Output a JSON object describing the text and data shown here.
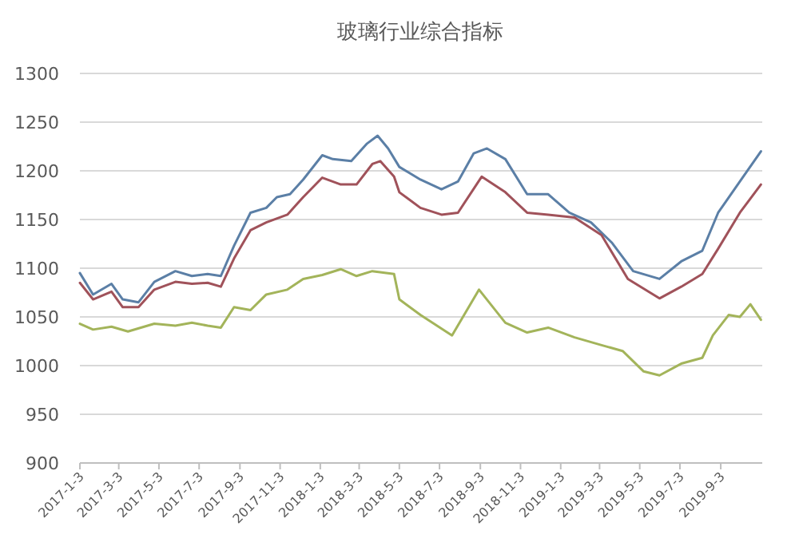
{
  "chart_data": {
    "type": "line",
    "title": "玻璃行业综合指标",
    "xlim": [
      "2017-01-03",
      "2019-11-05"
    ],
    "ylim": [
      900,
      1300
    ],
    "yticks": [
      900,
      950,
      1000,
      1050,
      1100,
      1150,
      1200,
      1250,
      1300
    ],
    "xticks": [
      {
        "value": "2017-01-03",
        "label": "2017-1-3"
      },
      {
        "value": "2017-03-03",
        "label": "2017-3-3"
      },
      {
        "value": "2017-05-03",
        "label": "2017-5-3"
      },
      {
        "value": "2017-07-03",
        "label": "2017-7-3"
      },
      {
        "value": "2017-09-03",
        "label": "2017-9-3"
      },
      {
        "value": "2017-11-03",
        "label": "2017-11-3"
      },
      {
        "value": "2018-01-03",
        "label": "2018-1-3"
      },
      {
        "value": "2018-03-03",
        "label": "2018-3-3"
      },
      {
        "value": "2018-05-03",
        "label": "2018-5-3"
      },
      {
        "value": "2018-07-03",
        "label": "2018-7-3"
      },
      {
        "value": "2018-09-03",
        "label": "2018-9-3"
      },
      {
        "value": "2018-11-03",
        "label": "2018-11-3"
      },
      {
        "value": "2019-01-03",
        "label": "2019-1-3"
      },
      {
        "value": "2019-03-03",
        "label": "2019-3-3"
      },
      {
        "value": "2019-05-03",
        "label": "2019-5-3"
      },
      {
        "value": "2019-07-03",
        "label": "2019-7-3"
      },
      {
        "value": "2019-09-03",
        "label": "2019-9-3"
      }
    ],
    "grid": "y",
    "marker": "none",
    "series": [
      {
        "color": "#5b7fa6",
        "x": [
          "2017-01-03",
          "2017-01-23",
          "2017-02-20",
          "2017-03-09",
          "2017-04-02",
          "2017-04-26",
          "2017-05-28",
          "2017-06-22",
          "2017-07-16",
          "2017-08-05",
          "2017-08-25",
          "2017-09-19",
          "2017-10-13",
          "2017-10-29",
          "2017-11-18",
          "2017-12-08",
          "2018-01-06",
          "2018-01-22",
          "2018-02-19",
          "2018-03-15",
          "2018-03-31",
          "2018-04-16",
          "2018-05-03",
          "2018-06-04",
          "2018-07-06",
          "2018-07-31",
          "2018-08-24",
          "2018-09-13",
          "2018-10-11",
          "2018-11-13",
          "2018-12-15",
          "2019-01-16",
          "2019-02-18",
          "2019-03-22",
          "2019-04-23",
          "2019-06-02",
          "2019-07-05",
          "2019-08-06",
          "2019-08-30",
          "2019-10-02",
          "2019-11-03"
        ],
        "values": [
          1095,
          1073,
          1084,
          1068,
          1065,
          1086,
          1097,
          1092,
          1094,
          1092,
          1123,
          1157,
          1162,
          1173,
          1176,
          1191,
          1216,
          1212,
          1210,
          1228,
          1236,
          1223,
          1204,
          1191,
          1181,
          1189,
          1218,
          1223,
          1212,
          1176,
          1176,
          1157,
          1147,
          1126,
          1097,
          1089,
          1107,
          1118,
          1157,
          1189,
          1220
        ]
      },
      {
        "color": "#a0525a",
        "x": [
          "2017-01-03",
          "2017-01-23",
          "2017-02-20",
          "2017-03-09",
          "2017-04-02",
          "2017-04-26",
          "2017-05-28",
          "2017-06-22",
          "2017-07-16",
          "2017-08-05",
          "2017-08-25",
          "2017-09-19",
          "2017-10-13",
          "2017-11-14",
          "2017-12-08",
          "2018-01-06",
          "2018-02-03",
          "2018-02-27",
          "2018-03-23",
          "2018-04-04",
          "2018-04-25",
          "2018-05-03",
          "2018-06-04",
          "2018-07-06",
          "2018-07-31",
          "2018-09-05",
          "2018-10-11",
          "2018-11-13",
          "2018-12-15",
          "2019-01-24",
          "2019-03-06",
          "2019-04-15",
          "2019-06-02",
          "2019-07-05",
          "2019-08-06",
          "2019-08-30",
          "2019-10-02",
          "2019-11-03"
        ],
        "values": [
          1085,
          1068,
          1076,
          1060,
          1060,
          1078,
          1086,
          1084,
          1085,
          1081,
          1110,
          1139,
          1147,
          1155,
          1173,
          1193,
          1186,
          1186,
          1207,
          1210,
          1194,
          1178,
          1162,
          1155,
          1157,
          1194,
          1178,
          1157,
          1155,
          1152,
          1134,
          1089,
          1069,
          1081,
          1094,
          1120,
          1157,
          1186
        ]
      },
      {
        "color": "#a3b45a",
        "x": [
          "2017-01-03",
          "2017-01-23",
          "2017-02-20",
          "2017-03-17",
          "2017-04-26",
          "2017-05-28",
          "2017-06-22",
          "2017-07-16",
          "2017-08-05",
          "2017-08-25",
          "2017-09-19",
          "2017-10-13",
          "2017-11-14",
          "2017-12-08",
          "2018-01-06",
          "2018-02-03",
          "2018-02-27",
          "2018-03-23",
          "2018-04-25",
          "2018-05-03",
          "2018-06-04",
          "2018-07-22",
          "2018-09-01",
          "2018-10-11",
          "2018-11-13",
          "2018-12-15",
          "2019-01-24",
          "2019-03-06",
          "2019-04-07",
          "2019-05-09",
          "2019-06-02",
          "2019-07-05",
          "2019-08-06",
          "2019-08-22",
          "2019-09-15",
          "2019-10-02",
          "2019-10-18",
          "2019-11-03"
        ],
        "values": [
          1043,
          1037,
          1040,
          1035,
          1043,
          1041,
          1044,
          1041,
          1039,
          1060,
          1057,
          1073,
          1078,
          1089,
          1093,
          1099,
          1092,
          1097,
          1094,
          1068,
          1052,
          1031,
          1078,
          1044,
          1034,
          1039,
          1029,
          1021,
          1015,
          994,
          990,
          1002,
          1008,
          1031,
          1052,
          1050,
          1063,
          1047
        ]
      }
    ]
  }
}
